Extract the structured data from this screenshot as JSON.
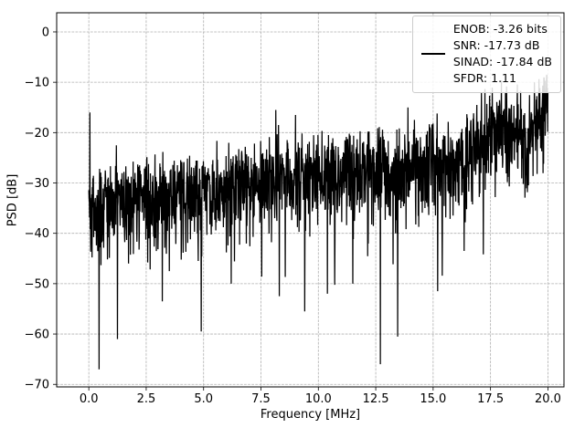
{
  "chart_data": {
    "type": "line",
    "title": "",
    "xlabel": "Frequency [MHz]",
    "ylabel": "PSD [dB]",
    "xlim": [
      -1.4,
      20.7
    ],
    "ylim": [
      -70.5,
      3.8
    ],
    "xticks": [
      0.0,
      2.5,
      5.0,
      7.5,
      10.0,
      12.5,
      15.0,
      17.5,
      20.0
    ],
    "xtick_labels": [
      "0.0",
      "2.5",
      "5.0",
      "7.5",
      "10.0",
      "12.5",
      "15.0",
      "17.5",
      "20.0"
    ],
    "yticks": [
      0,
      -10,
      -20,
      -30,
      -40,
      -50,
      -60,
      -70
    ],
    "ytick_labels": [
      "0",
      "−10",
      "−20",
      "−30",
      "−40",
      "−50",
      "−60",
      "−70"
    ],
    "grid": true,
    "grid_color": "#b0b0b0",
    "line_color": "#000000",
    "legend": {
      "position": "upper right",
      "lines": [
        "ENOB: -3.26 bits",
        "SNR: -17.73 dB",
        "SINAD: -17.84 dB",
        "SFDR: 1.11"
      ]
    },
    "series": [
      {
        "name": "PSD",
        "color": "#000000",
        "linewidth": 1.25
      }
    ],
    "generator": {
      "seed": 42,
      "n_points": 1700,
      "noise_up": 3.6,
      "noise_down": 5.6,
      "deep_spike_prob": 0.02,
      "envelope": [
        [
          0.0,
          -35.0
        ],
        [
          1.0,
          -33.5
        ],
        [
          3.0,
          -32.5
        ],
        [
          5.0,
          -31.0
        ],
        [
          7.0,
          -30.0
        ],
        [
          9.0,
          -28.5
        ],
        [
          11.0,
          -28.0
        ],
        [
          13.0,
          -27.0
        ],
        [
          15.0,
          -25.5
        ],
        [
          16.0,
          -24.5
        ],
        [
          16.8,
          -23.0
        ],
        [
          17.3,
          -20.0
        ],
        [
          17.8,
          -17.5
        ],
        [
          18.3,
          -19.0
        ],
        [
          18.8,
          -21.0
        ],
        [
          19.3,
          -19.0
        ],
        [
          19.7,
          -15.5
        ],
        [
          20.0,
          -13.5
        ]
      ],
      "spikes": [
        [
          0.05,
          -16.0
        ],
        [
          0.45,
          -67.0
        ],
        [
          1.25,
          -61.0
        ],
        [
          3.2,
          -53.5
        ],
        [
          4.9,
          -59.5
        ],
        [
          6.2,
          -50.0
        ],
        [
          8.3,
          -52.5
        ],
        [
          9.4,
          -55.5
        ],
        [
          10.4,
          -52.0
        ],
        [
          11.5,
          -50.0
        ],
        [
          12.7,
          -66.0
        ],
        [
          13.45,
          -60.5
        ],
        [
          15.2,
          -51.5
        ],
        [
          16.35,
          -43.5
        ],
        [
          8.15,
          -15.5
        ],
        [
          9.0,
          -16.5
        ],
        [
          13.9,
          -15.0
        ],
        [
          16.9,
          -14.5
        ],
        [
          19.95,
          -8.5
        ]
      ]
    }
  }
}
